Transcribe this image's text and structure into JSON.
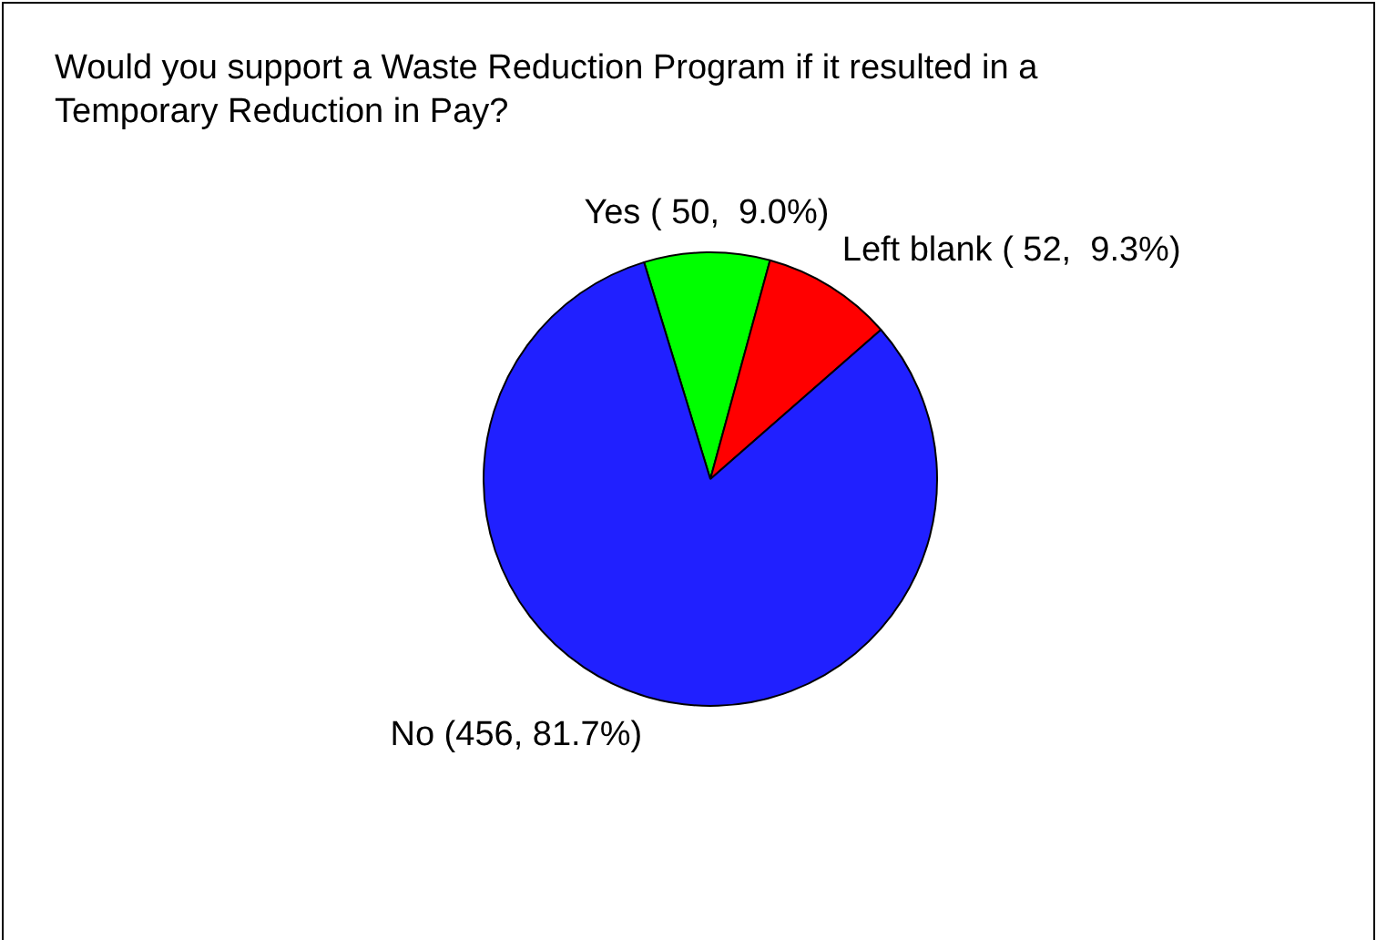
{
  "chart_data": {
    "type": "pie",
    "title": "Would you support a Waste Reduction Program if it resulted in a Temporary Reduction in Pay?",
    "categories": [
      "Yes",
      "Left blank",
      "No"
    ],
    "values": [
      50,
      52,
      456
    ],
    "value_labels": [
      "( 50,  9.0%)",
      "( 52,  9.3%)",
      "(456, 81.7%)"
    ],
    "colors": [
      "#00ff00",
      "#ff0000",
      "#2020ff"
    ],
    "legend": false
  }
}
